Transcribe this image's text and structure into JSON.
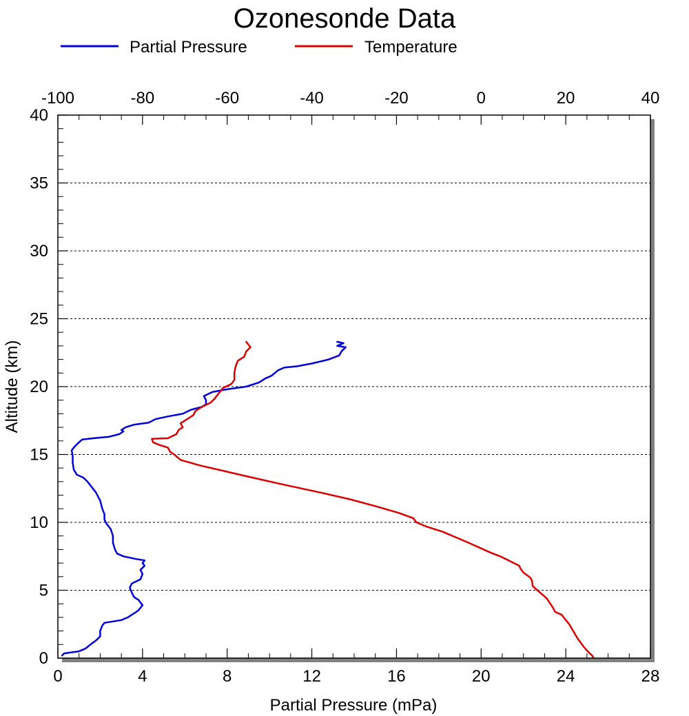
{
  "chart_data": {
    "type": "line",
    "title": "Ozonesonde Data",
    "xlabel": "Partial Pressure (mPa)",
    "ylabel": "Altitude (km)",
    "x_bottom": {
      "range": [
        0,
        28
      ],
      "ticks": [
        "0",
        "4",
        "8",
        "12",
        "16",
        "20",
        "24",
        "28"
      ]
    },
    "x_top": {
      "range": [
        -100,
        40
      ],
      "ticks": [
        "-100",
        "-80",
        "-60",
        "-40",
        "-20",
        "0",
        "20",
        "40"
      ]
    },
    "y": {
      "range": [
        0,
        40
      ],
      "ticks": [
        "0",
        "5",
        "10",
        "15",
        "20",
        "25",
        "30",
        "35",
        "40"
      ]
    },
    "grid": "horizontal dotted at major y ticks",
    "legend_position": "top-left",
    "series": [
      {
        "name": "Partial Pressure",
        "color": "#0000dd",
        "axis": "bottom",
        "points": [
          [
            0.2,
            0.2
          ],
          [
            0.3,
            0.35
          ],
          [
            1.0,
            0.5
          ],
          [
            1.3,
            0.7
          ],
          [
            1.5,
            0.95
          ],
          [
            1.8,
            1.3
          ],
          [
            2.0,
            1.6
          ],
          [
            2.0,
            2.0
          ],
          [
            2.1,
            2.4
          ],
          [
            2.2,
            2.6
          ],
          [
            3.0,
            2.8
          ],
          [
            3.3,
            3.0
          ],
          [
            3.6,
            3.3
          ],
          [
            3.8,
            3.5
          ],
          [
            4.0,
            3.9
          ],
          [
            3.8,
            4.3
          ],
          [
            3.6,
            4.5
          ],
          [
            3.5,
            4.8
          ],
          [
            3.4,
            5.2
          ],
          [
            3.5,
            5.5
          ],
          [
            3.9,
            5.8
          ],
          [
            4.0,
            6.2
          ],
          [
            3.9,
            6.5
          ],
          [
            4.1,
            6.8
          ],
          [
            4.0,
            7.0
          ],
          [
            4.1,
            7.2
          ],
          [
            3.7,
            7.3
          ],
          [
            3.1,
            7.5
          ],
          [
            2.8,
            7.7
          ],
          [
            2.7,
            8.0
          ],
          [
            2.6,
            8.5
          ],
          [
            2.6,
            9.0
          ],
          [
            2.5,
            9.5
          ],
          [
            2.3,
            9.9
          ],
          [
            2.2,
            10.2
          ],
          [
            2.2,
            10.6
          ],
          [
            2.1,
            11.0
          ],
          [
            2.0,
            11.6
          ],
          [
            1.8,
            12.2
          ],
          [
            1.6,
            12.6
          ],
          [
            1.4,
            13.0
          ],
          [
            1.2,
            13.3
          ],
          [
            0.9,
            13.5
          ],
          [
            0.75,
            13.9
          ],
          [
            0.7,
            14.4
          ],
          [
            0.7,
            14.9
          ],
          [
            0.65,
            15.3
          ],
          [
            0.8,
            15.6
          ],
          [
            1.0,
            15.9
          ],
          [
            1.15,
            16.1
          ],
          [
            1.7,
            16.2
          ],
          [
            2.4,
            16.3
          ],
          [
            2.9,
            16.5
          ],
          [
            3.1,
            16.7
          ],
          [
            3.0,
            16.8
          ],
          [
            3.2,
            17.0
          ],
          [
            3.6,
            17.2
          ],
          [
            4.3,
            17.35
          ],
          [
            4.6,
            17.6
          ],
          [
            5.2,
            17.8
          ],
          [
            5.9,
            18.0
          ],
          [
            6.3,
            18.3
          ],
          [
            6.8,
            18.5
          ],
          [
            7.0,
            18.7
          ],
          [
            7.0,
            19.0
          ],
          [
            6.9,
            19.3
          ],
          [
            7.3,
            19.6
          ],
          [
            8.0,
            19.8
          ],
          [
            8.9,
            20.0
          ],
          [
            9.5,
            20.3
          ],
          [
            9.8,
            20.6
          ],
          [
            10.1,
            20.8
          ],
          [
            10.4,
            21.2
          ],
          [
            10.7,
            21.4
          ],
          [
            11.3,
            21.5
          ],
          [
            12.0,
            21.7
          ],
          [
            12.8,
            22.0
          ],
          [
            13.3,
            22.3
          ],
          [
            13.4,
            22.6
          ],
          [
            13.6,
            22.9
          ],
          [
            13.2,
            23.0
          ],
          [
            13.5,
            23.2
          ],
          [
            13.2,
            23.3
          ]
        ]
      },
      {
        "name": "Temperature",
        "color": "#dd0000",
        "axis": "top",
        "points": [
          [
            26.5,
            0.05
          ],
          [
            26.2,
            0.2
          ],
          [
            25.5,
            0.4
          ],
          [
            24.3,
            0.8
          ],
          [
            22.7,
            1.5
          ],
          [
            20.8,
            2.5
          ],
          [
            19.0,
            3.2
          ],
          [
            17.5,
            3.4
          ],
          [
            17.0,
            3.7
          ],
          [
            15.5,
            4.4
          ],
          [
            13.3,
            5.0
          ],
          [
            12.2,
            5.3
          ],
          [
            12.0,
            5.7
          ],
          [
            11.7,
            5.9
          ],
          [
            10.9,
            6.1
          ],
          [
            10.0,
            6.3
          ],
          [
            9.3,
            6.6
          ],
          [
            9.0,
            6.8
          ],
          [
            6.5,
            7.2
          ],
          [
            4.5,
            7.5
          ],
          [
            2.0,
            7.8
          ],
          [
            -3.0,
            8.5
          ],
          [
            -9.0,
            9.3
          ],
          [
            -13.0,
            9.7
          ],
          [
            -15.3,
            10.0
          ],
          [
            -16.0,
            10.3
          ],
          [
            -19.5,
            10.7
          ],
          [
            -25.0,
            11.2
          ],
          [
            -31.0,
            11.7
          ],
          [
            -38.0,
            12.2
          ],
          [
            -47.0,
            12.8
          ],
          [
            -55.5,
            13.4
          ],
          [
            -61.0,
            13.8
          ],
          [
            -66.5,
            14.2
          ],
          [
            -71.0,
            14.6
          ],
          [
            -72.5,
            15.0
          ],
          [
            -73.5,
            15.2
          ],
          [
            -74.0,
            15.5
          ],
          [
            -76.0,
            15.7
          ],
          [
            -77.5,
            15.9
          ],
          [
            -77.8,
            16.15
          ],
          [
            -74.0,
            16.2
          ],
          [
            -72.0,
            16.5
          ],
          [
            -71.5,
            16.8
          ],
          [
            -70.5,
            17.0
          ],
          [
            -71.0,
            17.3
          ],
          [
            -70.0,
            17.5
          ],
          [
            -68.0,
            17.9
          ],
          [
            -67.5,
            18.2
          ],
          [
            -66.0,
            18.5
          ],
          [
            -64.0,
            18.8
          ],
          [
            -63.0,
            19.1
          ],
          [
            -62.0,
            19.5
          ],
          [
            -61.0,
            19.9
          ],
          [
            -59.0,
            20.2
          ],
          [
            -58.3,
            20.5
          ],
          [
            -58.3,
            21.0
          ],
          [
            -58.0,
            21.5
          ],
          [
            -57.5,
            21.9
          ],
          [
            -56.0,
            22.2
          ],
          [
            -55.5,
            22.6
          ],
          [
            -54.5,
            22.9
          ],
          [
            -55.0,
            23.1
          ],
          [
            -55.5,
            23.3
          ]
        ]
      }
    ]
  }
}
